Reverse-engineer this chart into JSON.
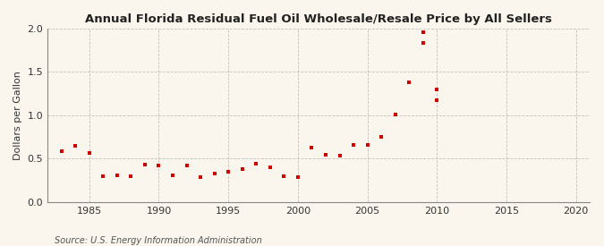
{
  "title": "Annual Florida Residual Fuel Oil Wholesale/Resale Price by All Sellers",
  "ylabel": "Dollars per Gallon",
  "source": "Source: U.S. Energy Information Administration",
  "background_color": "#faf6ed",
  "marker_color": "#cc0000",
  "years": [
    1983,
    1984,
    1985,
    1986,
    1987,
    1988,
    1989,
    1990,
    1991,
    1992,
    1993,
    1994,
    1995,
    1996,
    1997,
    1998,
    1999,
    2000,
    2001,
    2002,
    2003,
    2004,
    2005,
    2006,
    2007,
    2008,
    2009,
    2010
  ],
  "values": [
    0.59,
    0.65,
    0.57,
    0.3,
    0.31,
    0.3,
    0.43,
    0.42,
    0.31,
    0.42,
    0.29,
    0.33,
    0.35,
    0.38,
    0.44,
    0.4,
    0.3,
    0.29,
    0.63,
    0.55,
    0.54,
    0.66,
    0.66,
    0.75,
    1.01,
    1.38,
    1.96,
    1.3
  ],
  "extra_years": [
    2009,
    2010
  ],
  "extra_values": [
    1.83,
    1.17
  ],
  "xlim": [
    1982,
    2021
  ],
  "ylim": [
    0.0,
    2.0
  ],
  "xticks": [
    1985,
    1990,
    1995,
    2000,
    2005,
    2010,
    2015,
    2020
  ],
  "yticks": [
    0.0,
    0.5,
    1.0,
    1.5,
    2.0
  ],
  "grid_color": "#aaaaaa",
  "spine_color": "#888888",
  "title_fontsize": 9.5,
  "label_fontsize": 8,
  "source_fontsize": 7,
  "marker_size": 10
}
